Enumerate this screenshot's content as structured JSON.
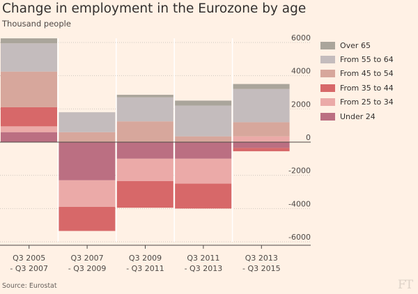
{
  "title": "Change in employment in the Eurozone by age",
  "subtitle": "Thousand people",
  "source": "Source: Eurostat",
  "logo": "FT",
  "legend_order": [
    "Over 65",
    "From 55 to 64",
    "From 45 to 54",
    "From 35 to 44",
    "From 25 to 34",
    "Under 24"
  ],
  "colors": {
    "Over 65": "#aaa59b",
    "From 55 to 64": "#c4bcbd",
    "From 45 to 54": "#d7a79c",
    "From 35 to 44": "#d76869",
    "From 25 to 34": "#ebaaa8",
    "Under 24": "#bb6f82"
  },
  "chart_data": {
    "type": "bar",
    "stacked": true,
    "title": "Change in employment in the Eurozone by age",
    "ylabel": "Thousand people",
    "ylim": [
      -6000,
      6000
    ],
    "yticks": [
      6000,
      4000,
      2000,
      0,
      -2000,
      -4000,
      -6000
    ],
    "ytick_labels": [
      "6000",
      "4000",
      "2000",
      "0",
      "-2000",
      "-4000",
      "-6000"
    ],
    "y_axis_side": "right",
    "legend_position": "right",
    "categories": [
      [
        "Q3 2005",
        "- Q3 2007"
      ],
      [
        "Q3 2007",
        "- Q3 2009"
      ],
      [
        "Q3 2009",
        "- Q3 2011"
      ],
      [
        "Q3 2011",
        "- Q3 2013"
      ],
      [
        "Q3 2013",
        "- Q3 2015"
      ]
    ],
    "stack_order": [
      "Under 24",
      "From 25 to 34",
      "From 35 to 44",
      "From 45 to 54",
      "From 55 to 64",
      "Over 65"
    ],
    "series": [
      {
        "name": "Under 24",
        "values": [
          600,
          -2300,
          -1000,
          -1000,
          -350
        ]
      },
      {
        "name": "From 25 to 34",
        "values": [
          350,
          -1600,
          -1350,
          -1500,
          350
        ]
      },
      {
        "name": "From 35 to 44",
        "values": [
          1150,
          -1450,
          -1600,
          -1500,
          -200
        ]
      },
      {
        "name": "From 45 to 54",
        "values": [
          2150,
          600,
          1250,
          350,
          850
        ]
      },
      {
        "name": "From 55 to 64",
        "values": [
          1700,
          1200,
          1450,
          1850,
          2000
        ]
      },
      {
        "name": "Over 65",
        "values": [
          300,
          0,
          150,
          300,
          300
        ]
      }
    ]
  }
}
